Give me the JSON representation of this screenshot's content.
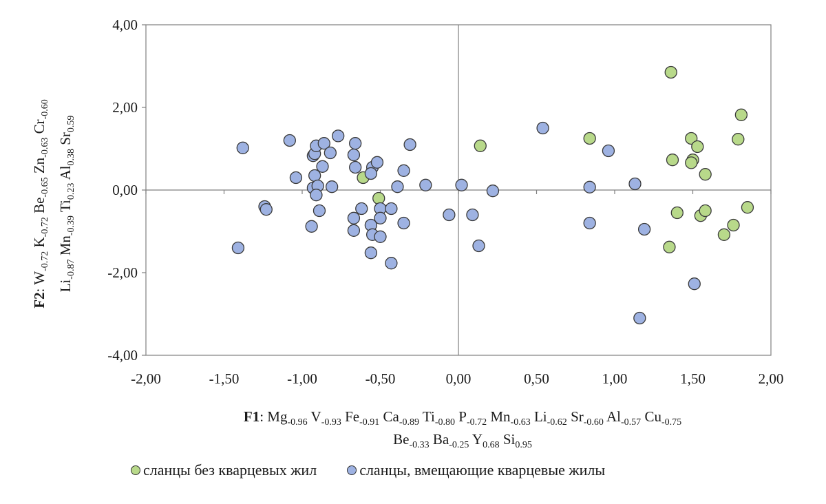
{
  "chart_data": {
    "type": "scatter",
    "xlim": [
      -2,
      2
    ],
    "ylim": [
      -4,
      4
    ],
    "x_ticks": [
      "-2,00",
      "-1,50",
      "-1,00",
      "-0,50",
      "0,00",
      "0,50",
      "1,00",
      "1,50",
      "2,00"
    ],
    "y_ticks": [
      "-4,00",
      "-2,00",
      "0,00",
      "2,00",
      "4,00"
    ],
    "xlabel": {
      "bold": "F1",
      "line1": [
        {
          "t": ": Mg"
        },
        {
          "t": "-0.96",
          "sub": true
        },
        {
          "t": " V"
        },
        {
          "t": "-0.93",
          "sub": true
        },
        {
          "t": " Fe"
        },
        {
          "t": "-0.91",
          "sub": true
        },
        {
          "t": " Ca"
        },
        {
          "t": "-0.89",
          "sub": true
        },
        {
          "t": " Ti"
        },
        {
          "t": "-0.80",
          "sub": true
        },
        {
          "t": " P"
        },
        {
          "t": "-0.72",
          "sub": true
        },
        {
          "t": " Mn"
        },
        {
          "t": "-0.63",
          "sub": true
        },
        {
          "t": " Li"
        },
        {
          "t": "-0.62",
          "sub": true
        },
        {
          "t": " Sr"
        },
        {
          "t": "-0.60",
          "sub": true
        },
        {
          "t": " Al"
        },
        {
          "t": "-0.57",
          "sub": true
        },
        {
          "t": " Cu"
        },
        {
          "t": "-0.75",
          "sub": true
        }
      ],
      "line2": [
        {
          "t": "Be"
        },
        {
          "t": "-0.33",
          "sub": true
        },
        {
          "t": " Ba"
        },
        {
          "t": "-0.25",
          "sub": true
        },
        {
          "t": " Y"
        },
        {
          "t": "0.68",
          "sub": true
        },
        {
          "t": " Si"
        },
        {
          "t": "0.95",
          "sub": true
        }
      ]
    },
    "ylabel": {
      "bold": "F2",
      "line1": [
        {
          "t": ": W"
        },
        {
          "t": "-0.72",
          "sub": true
        },
        {
          "t": " K"
        },
        {
          "t": "-0.72",
          "sub": true
        },
        {
          "t": " Be"
        },
        {
          "t": "-0.65",
          "sub": true
        },
        {
          "t": " Zn"
        },
        {
          "t": "-0.63",
          "sub": true
        },
        {
          "t": " Cr"
        },
        {
          "t": "-0.60",
          "sub": true
        }
      ],
      "line2": [
        {
          "t": "Li"
        },
        {
          "t": "-0.87",
          "sub": true
        },
        {
          "t": " Mn"
        },
        {
          "t": "-0.39",
          "sub": true
        },
        {
          "t": " Ti"
        },
        {
          "t": "0.23",
          "sub": true
        },
        {
          "t": " Al"
        },
        {
          "t": "0.38",
          "sub": true
        },
        {
          "t": " Sr"
        },
        {
          "t": "0.59",
          "sub": true
        }
      ]
    },
    "series": [
      {
        "name": "сланцы без кварцевых жил",
        "color": "#b8d98a",
        "points": [
          [
            1.36,
            2.85
          ],
          [
            1.81,
            1.82
          ],
          [
            1.79,
            1.23
          ],
          [
            1.49,
            1.25
          ],
          [
            1.53,
            1.05
          ],
          [
            1.37,
            0.73
          ],
          [
            1.5,
            0.73
          ],
          [
            1.49,
            0.66
          ],
          [
            1.58,
            0.38
          ],
          [
            0.84,
            1.25
          ],
          [
            0.14,
            1.07
          ],
          [
            -0.61,
            0.3
          ],
          [
            -0.51,
            -0.2
          ],
          [
            1.4,
            -0.55
          ],
          [
            1.55,
            -0.62
          ],
          [
            1.58,
            -0.5
          ],
          [
            1.85,
            -0.42
          ],
          [
            1.76,
            -0.85
          ],
          [
            1.7,
            -1.08
          ],
          [
            1.35,
            -1.38
          ]
        ]
      },
      {
        "name": "сланцы, вмещающие кварцевые жилы",
        "color": "#9eb2e2",
        "points": [
          [
            -1.38,
            1.02
          ],
          [
            -1.08,
            1.2
          ],
          [
            -0.93,
            0.83
          ],
          [
            -0.92,
            0.88
          ],
          [
            -0.91,
            1.07
          ],
          [
            -0.86,
            1.13
          ],
          [
            -0.82,
            0.9
          ],
          [
            -0.77,
            1.31
          ],
          [
            -0.66,
            1.13
          ],
          [
            -0.67,
            0.85
          ],
          [
            -0.55,
            0.55
          ],
          [
            -0.52,
            0.67
          ],
          [
            -0.31,
            1.1
          ],
          [
            -0.87,
            0.57
          ],
          [
            -0.66,
            0.55
          ],
          [
            -0.56,
            0.4
          ],
          [
            -0.35,
            0.47
          ],
          [
            -1.04,
            0.3
          ],
          [
            -0.92,
            0.35
          ],
          [
            -0.93,
            0.05
          ],
          [
            -0.9,
            0.1
          ],
          [
            -0.91,
            -0.12
          ],
          [
            -0.81,
            0.08
          ],
          [
            -0.39,
            0.08
          ],
          [
            -0.21,
            0.12
          ],
          [
            0.02,
            0.12
          ],
          [
            0.22,
            -0.02
          ],
          [
            0.54,
            1.5
          ],
          [
            0.96,
            0.95
          ],
          [
            0.84,
            0.07
          ],
          [
            1.13,
            0.15
          ],
          [
            -1.24,
            -0.4
          ],
          [
            -1.23,
            -0.47
          ],
          [
            -0.89,
            -0.5
          ],
          [
            -0.94,
            -0.88
          ],
          [
            -0.62,
            -0.45
          ],
          [
            -0.5,
            -0.45
          ],
          [
            -0.43,
            -0.45
          ],
          [
            -0.67,
            -0.68
          ],
          [
            -0.5,
            -0.68
          ],
          [
            -0.56,
            -0.85
          ],
          [
            -0.35,
            -0.8
          ],
          [
            -0.06,
            -0.6
          ],
          [
            0.09,
            -0.6
          ],
          [
            -0.67,
            -0.98
          ],
          [
            -0.55,
            -1.08
          ],
          [
            -0.5,
            -1.13
          ],
          [
            -0.56,
            -1.52
          ],
          [
            -0.43,
            -1.77
          ],
          [
            0.13,
            -1.35
          ],
          [
            -1.41,
            -1.4
          ],
          [
            0.84,
            -0.8
          ],
          [
            1.19,
            -0.95
          ],
          [
            1.51,
            -2.27
          ],
          [
            1.16,
            -3.1
          ]
        ]
      }
    ]
  }
}
